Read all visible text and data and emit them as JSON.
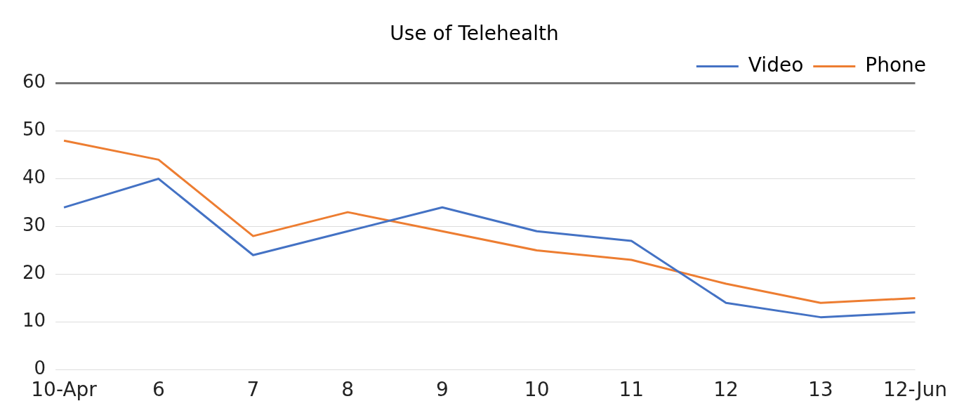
{
  "chart_data": {
    "type": "line",
    "title": "Use of Telehealth",
    "categories": [
      "10-Apr",
      "6",
      "7",
      "8",
      "9",
      "10",
      "11",
      "12",
      "13",
      "12-Jun"
    ],
    "series": [
      {
        "name": "Video",
        "color": "#4472c4",
        "values": [
          34,
          40,
          24,
          29,
          34,
          29,
          27,
          14,
          11,
          12
        ]
      },
      {
        "name": "Phone",
        "color": "#ed7d31",
        "values": [
          48,
          44,
          28,
          33,
          29,
          25,
          23,
          18,
          14,
          15
        ]
      }
    ],
    "ylim": [
      0,
      60
    ],
    "yticks": [
      0,
      10,
      20,
      30,
      40,
      50,
      60
    ],
    "grid": "y",
    "legend": "top right",
    "marker": "none",
    "line_style": "solid"
  }
}
